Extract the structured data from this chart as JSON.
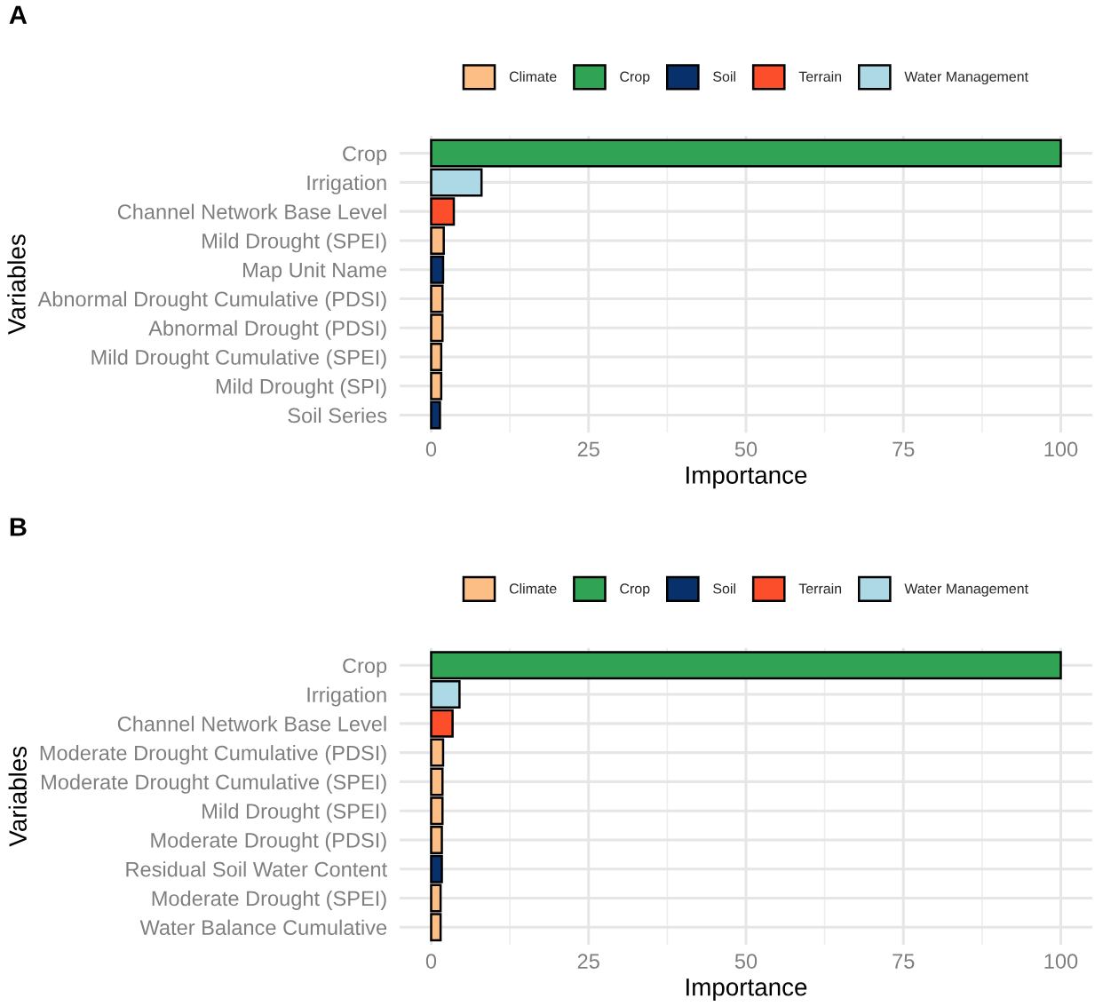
{
  "chart_data": [
    {
      "type": "bar",
      "title": "A",
      "orientation": "horizontal",
      "stacked": true,
      "xlabel": "Importance",
      "ylabel": "Variables",
      "xlim": [
        -5,
        105
      ],
      "xticks": [
        0,
        25,
        50,
        75,
        100
      ],
      "grid": true,
      "legend": "top",
      "categories": [
        "Crop",
        "Irrigation",
        "Channel Network Base Level",
        "Mild Drought (SPEI)",
        "Map Unit Name",
        "Abnormal Drought Cumulative (PDSI)",
        "Abnormal Drought (PDSI)",
        "Mild Drought Cumulative (SPEI)",
        "Mild Drought (SPI)",
        "Soil Series"
      ],
      "series": [
        {
          "name": "Climate",
          "color": "#fdbe85",
          "values": [
            null,
            null,
            null,
            2.0,
            null,
            1.8,
            1.8,
            1.6,
            1.6,
            null
          ]
        },
        {
          "name": "Crop",
          "color": "#31a354",
          "values": [
            100,
            null,
            null,
            null,
            null,
            null,
            null,
            null,
            null,
            null
          ]
        },
        {
          "name": "Soil",
          "color": "#08306b",
          "values": [
            null,
            null,
            null,
            null,
            1.9,
            null,
            null,
            null,
            null,
            1.4
          ]
        },
        {
          "name": "Terrain",
          "color": "#fc4e2a",
          "values": [
            null,
            null,
            3.6,
            null,
            null,
            null,
            null,
            null,
            null,
            null
          ]
        },
        {
          "name": "Water Management",
          "color": "#add8e6",
          "values": [
            null,
            8.0,
            null,
            null,
            null,
            null,
            null,
            null,
            null,
            null
          ]
        }
      ]
    },
    {
      "type": "bar",
      "title": "B",
      "orientation": "horizontal",
      "stacked": true,
      "xlabel": "Importance",
      "ylabel": "Variables",
      "xlim": [
        -5,
        105
      ],
      "xticks": [
        0,
        25,
        50,
        75,
        100
      ],
      "grid": true,
      "legend": "top",
      "categories": [
        "Crop",
        "Irrigation",
        "Channel Network Base Level",
        "Moderate Drought Cumulative (PDSI)",
        "Moderate Drought Cumulative (SPEI)",
        "Mild Drought (SPEI)",
        "Moderate Drought (PDSI)",
        "Residual Soil Water Content",
        "Moderate Drought (SPEI)",
        "Water Balance Cumulative"
      ],
      "series": [
        {
          "name": "Climate",
          "color": "#fdbe85",
          "values": [
            null,
            null,
            null,
            1.9,
            1.8,
            1.8,
            1.7,
            null,
            1.5,
            1.5
          ]
        },
        {
          "name": "Crop",
          "color": "#31a354",
          "values": [
            100,
            null,
            null,
            null,
            null,
            null,
            null,
            null,
            null,
            null
          ]
        },
        {
          "name": "Soil",
          "color": "#08306b",
          "values": [
            null,
            null,
            null,
            null,
            null,
            null,
            null,
            1.7,
            null,
            null
          ]
        },
        {
          "name": "Terrain",
          "color": "#fc4e2a",
          "values": [
            null,
            null,
            3.4,
            null,
            null,
            null,
            null,
            null,
            null,
            null
          ]
        },
        {
          "name": "Water Management",
          "color": "#add8e6",
          "values": [
            null,
            4.5,
            null,
            null,
            null,
            null,
            null,
            null,
            null,
            null
          ]
        }
      ]
    }
  ]
}
